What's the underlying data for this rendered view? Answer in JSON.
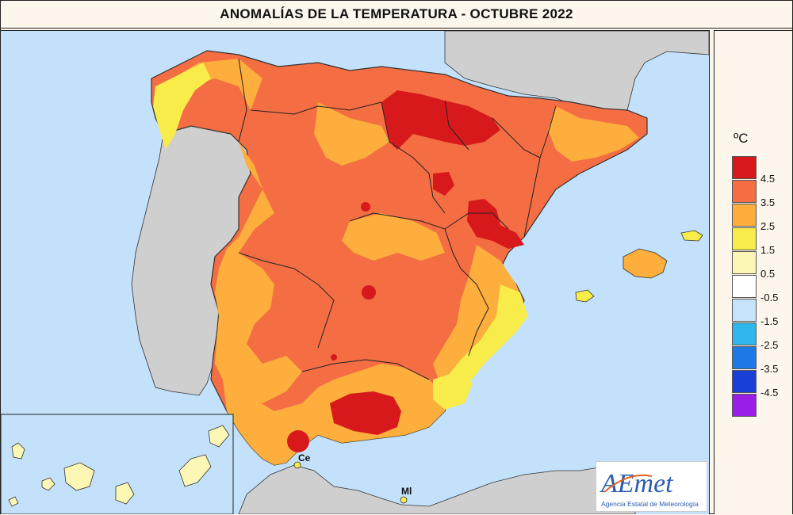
{
  "title": "ANOMALÍAS DE LA TEMPERATURA - OCTUBRE 2022",
  "legend": {
    "unit": "ºC",
    "classes": [
      {
        "label": "4.5",
        "color": "#d7191c"
      },
      {
        "label": "3.5",
        "color": "#f46d43"
      },
      {
        "label": "2.5",
        "color": "#fdae3d"
      },
      {
        "label": "1.5",
        "color": "#f8ec4a"
      },
      {
        "label": "0.5",
        "color": "#fdf7b5"
      },
      {
        "label": "-0.5",
        "color": "#ffffff"
      },
      {
        "label": "-1.5",
        "color": "#c6e3fa"
      },
      {
        "label": "-2.5",
        "color": "#2fb6ea"
      },
      {
        "label": "-3.5",
        "color": "#1e78e6"
      },
      {
        "label": "-4.5",
        "color": "#1a3fd6"
      },
      {
        "label": "",
        "color": "#9b1ee8"
      }
    ]
  },
  "places": {
    "ceuta": "Ce",
    "melilla": "Ml"
  },
  "logo": {
    "text": "AEmet",
    "subtitle": "Agencia Estatal de Meteorología"
  },
  "colors": {
    "sea": "#c4e1fb",
    "foreign_land": "#cfcfcf",
    "border": "#222222"
  }
}
